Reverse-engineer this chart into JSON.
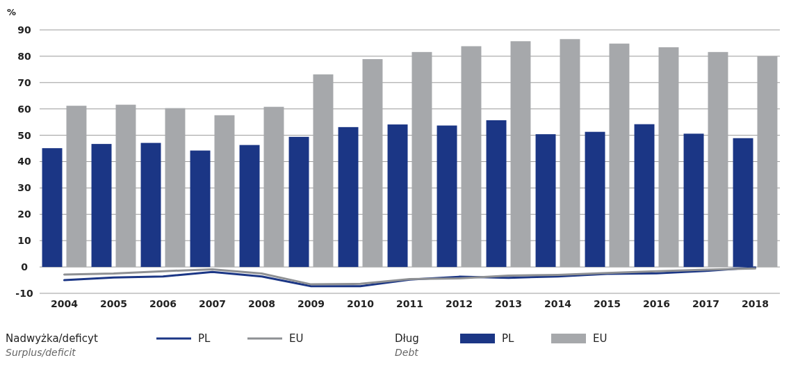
{
  "chart_data": {
    "type": "bar",
    "ylabel": "%",
    "categories": [
      "2004",
      "2005",
      "2006",
      "2007",
      "2008",
      "2009",
      "2010",
      "2011",
      "2012",
      "2013",
      "2014",
      "2015",
      "2016",
      "2017",
      "2018"
    ],
    "series": [
      {
        "name": "PL",
        "type": "line",
        "color": "#1b3685",
        "values": [
          -5.0,
          -4.0,
          -3.6,
          -1.9,
          -3.6,
          -7.3,
          -7.3,
          -4.8,
          -3.7,
          -4.1,
          -3.6,
          -2.6,
          -2.4,
          -1.5,
          -0.2
        ]
      },
      {
        "name": "EU",
        "type": "line",
        "color": "#8e9093",
        "values": [
          -2.9,
          -2.5,
          -1.6,
          -0.9,
          -2.5,
          -6.6,
          -6.4,
          -4.6,
          -4.3,
          -3.3,
          -3.0,
          -2.3,
          -1.6,
          -1.0,
          -0.6
        ]
      },
      {
        "name": "PL",
        "color": "#1b3685",
        "values": [
          45.1,
          46.7,
          47.1,
          44.2,
          46.3,
          49.4,
          53.1,
          54.1,
          53.7,
          55.7,
          50.4,
          51.3,
          54.2,
          50.6,
          48.9
        ]
      },
      {
        "name": "EU",
        "color": "#a6a8ab",
        "values": [
          61.2,
          61.6,
          60.3,
          57.6,
          60.8,
          73.1,
          78.9,
          81.6,
          83.8,
          85.7,
          86.5,
          84.8,
          83.4,
          81.6,
          80.0
        ]
      }
    ],
    "ylim": [
      -10,
      90
    ],
    "yticks": [
      -10,
      0,
      10,
      20,
      30,
      40,
      50,
      60,
      70,
      80,
      90
    ],
    "grid": "y",
    "legend": "bottom",
    "annotations": [
      "Nadwyżka/deficyt",
      "Surplus/deficit",
      "Dług",
      "Debt"
    ]
  }
}
